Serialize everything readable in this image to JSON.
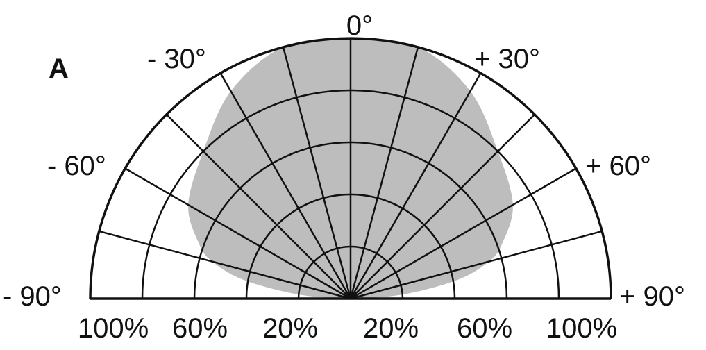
{
  "panel_label": "A",
  "chart_data": {
    "type": "polar",
    "title": "",
    "angle_range_deg": [
      -90,
      90
    ],
    "angle_grid_step_deg": 15,
    "radial_grid": [
      20,
      40,
      60,
      80,
      100
    ],
    "radial_unit": "%",
    "angle_labels": [
      {
        "angle": -90,
        "text": "- 90°"
      },
      {
        "angle": -60,
        "text": "- 60°"
      },
      {
        "angle": -30,
        "text": "- 30°"
      },
      {
        "angle": 0,
        "text": "0°"
      },
      {
        "angle": 30,
        "text": "+ 30°"
      },
      {
        "angle": 60,
        "text": "+ 60°"
      },
      {
        "angle": 90,
        "text": "+ 90°"
      }
    ],
    "radial_tick_labels": [
      "100%",
      "60%",
      "20%",
      "20%",
      "60%",
      "100%"
    ],
    "fill_color": "#bdbdbd",
    "grid_color": "#111111",
    "series": [
      {
        "angles_deg": [
          -90,
          -85,
          -80,
          -75,
          -70,
          -60,
          -45,
          -30,
          -15,
          0,
          15,
          30,
          45,
          60,
          70,
          75,
          80,
          85,
          90
        ],
        "values_pct": [
          5,
          22,
          42,
          55,
          62,
          72,
          80,
          92,
          100,
          100,
          100,
          92,
          80,
          72,
          62,
          55,
          42,
          22,
          5
        ]
      }
    ]
  }
}
